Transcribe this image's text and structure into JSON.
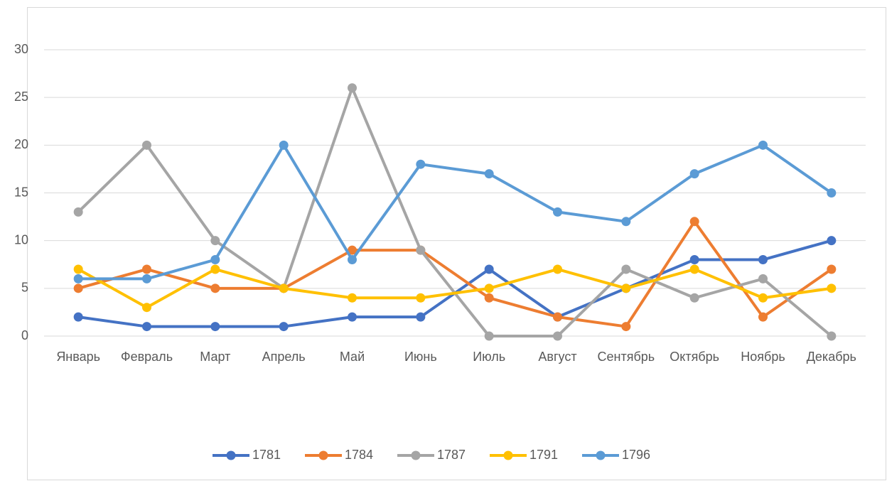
{
  "chart_data": {
    "type": "line",
    "categories": [
      "Январь",
      "Февраль",
      "Март",
      "Апрель",
      "Май",
      "Июнь",
      "Июль",
      "Август",
      "Сентябрь",
      "Октябрь",
      "Ноябрь",
      "Декабрь"
    ],
    "series": [
      {
        "name": "1781",
        "color": "#4472c4",
        "values": [
          2,
          1,
          1,
          1,
          2,
          2,
          7,
          2,
          5,
          8,
          8,
          10
        ]
      },
      {
        "name": "1784",
        "color": "#ed7d31",
        "values": [
          5,
          7,
          5,
          5,
          9,
          9,
          4,
          2,
          1,
          12,
          2,
          7
        ]
      },
      {
        "name": "1787",
        "color": "#a5a5a5",
        "values": [
          13,
          20,
          10,
          5,
          26,
          9,
          0,
          0,
          7,
          4,
          6,
          0
        ]
      },
      {
        "name": "1791",
        "color": "#ffc000",
        "values": [
          7,
          3,
          7,
          5,
          4,
          4,
          5,
          7,
          5,
          7,
          4,
          5
        ]
      },
      {
        "name": "1796",
        "color": "#5b9bd5",
        "values": [
          6,
          6,
          8,
          20,
          8,
          18,
          17,
          13,
          12,
          17,
          20,
          15
        ]
      }
    ],
    "ylim": [
      0,
      30
    ],
    "yticks": [
      0,
      5,
      10,
      15,
      20,
      25,
      30
    ],
    "grid": true,
    "legend": "bottom"
  }
}
